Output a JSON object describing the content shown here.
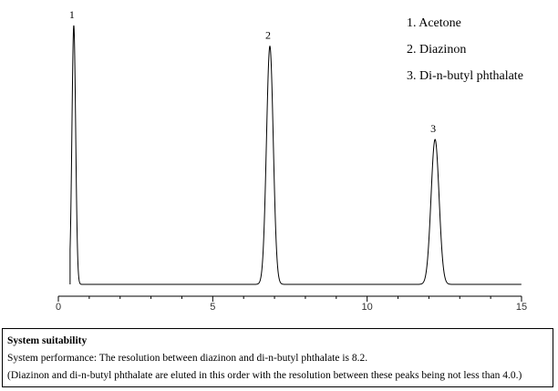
{
  "chart_data": {
    "type": "line",
    "title": "",
    "xlabel": "",
    "ylabel": "",
    "xlim": [
      0,
      15
    ],
    "x_ticks": [
      "0",
      "5",
      "10",
      "15"
    ],
    "grid": false,
    "line_color": "#000000",
    "peaks": [
      {
        "label": "1",
        "x": 0.5,
        "height": 1.0,
        "width": 0.06
      },
      {
        "label": "2",
        "x": 6.85,
        "height": 0.92,
        "width": 0.11
      },
      {
        "label": "3",
        "x": 12.2,
        "height": 0.56,
        "width": 0.13
      }
    ],
    "legend": [
      "1. Acetone",
      "2. Diazinon",
      "3. Di-n-butyl  phthalate"
    ]
  },
  "system_suitability": {
    "title": "System suitability",
    "line1": "System performance:  The resolution between diazinon and di-n-butyl phthalate is 8.2.",
    "line2": "(Diazinon and di-n-butyl phthalate are eluted in this order with the resolution between these peaks being  not less than 4.0.)"
  }
}
